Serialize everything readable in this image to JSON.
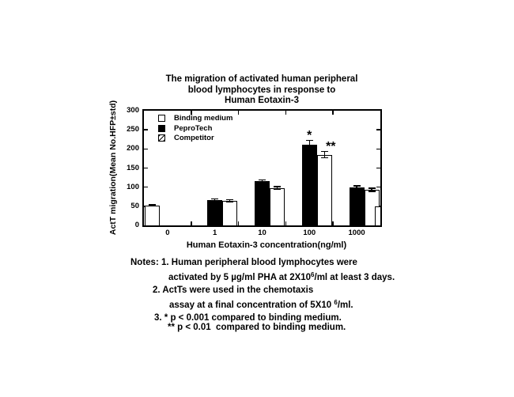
{
  "figure": {
    "title_lines": [
      "The migration of activated human peripheral",
      "blood lymphocytes in response to",
      "Human Eotaxin-3"
    ]
  },
  "chart_data": {
    "type": "bar",
    "title": "The migration of activated human peripheral blood lymphocytes in response to Human Eotaxin-3",
    "xlabel": "Human Eotaxin-3 concentration(ng/ml)",
    "ylabel": "ActT migration(Mean No.HFP±std)",
    "ylim": [
      0,
      300
    ],
    "yticks": [
      0,
      50,
      100,
      150,
      200,
      250,
      300
    ],
    "categories": [
      "0",
      "1",
      "10",
      "100",
      "1000"
    ],
    "grid": false,
    "legend": {
      "position": "top-left-inside"
    },
    "series": [
      {
        "name": "Binding medium",
        "style": "open",
        "values": [
          52,
          null,
          null,
          null,
          null
        ],
        "errors": [
          3,
          null,
          null,
          null,
          null
        ]
      },
      {
        "name": "PeproTech",
        "style": "solid",
        "values": [
          null,
          67,
          115,
          212,
          100
        ],
        "errors": [
          null,
          4,
          6,
          12,
          5
        ]
      },
      {
        "name": "Competitor",
        "style": "hatched",
        "values": [
          null,
          65,
          98,
          185,
          93
        ],
        "errors": [
          null,
          4,
          5,
          10,
          6
        ]
      }
    ],
    "annotations": [
      {
        "text": "*",
        "series": "PeproTech",
        "category": "100"
      },
      {
        "text": "**",
        "series": "Competitor",
        "category": "100"
      }
    ],
    "right_edge_partial_bar": {
      "series": "Binding medium",
      "value": 50,
      "clipped": true
    }
  },
  "notes": {
    "lines": [
      [
        {
          "t": "Notes: 1. Human peripheral blood lymphocytes were"
        }
      ],
      [
        {
          "t": "activated by 5 µg/ml PHA at 2X10"
        },
        {
          "t": "6",
          "sup": true
        },
        {
          "t": "/ml at least 3 days."
        }
      ],
      [
        {
          "t": "2. ActTs were used in the chemotaxis"
        }
      ],
      [
        {
          "t": "assay at a final concentration of 5X10 "
        },
        {
          "t": "6",
          "sup": true
        },
        {
          "t": "/ml."
        }
      ],
      [
        {
          "t": "3. * p < 0.001 compared to binding medium."
        }
      ],
      [
        {
          "t": "** p < 0.01  compared to binding medium."
        }
      ]
    ]
  }
}
